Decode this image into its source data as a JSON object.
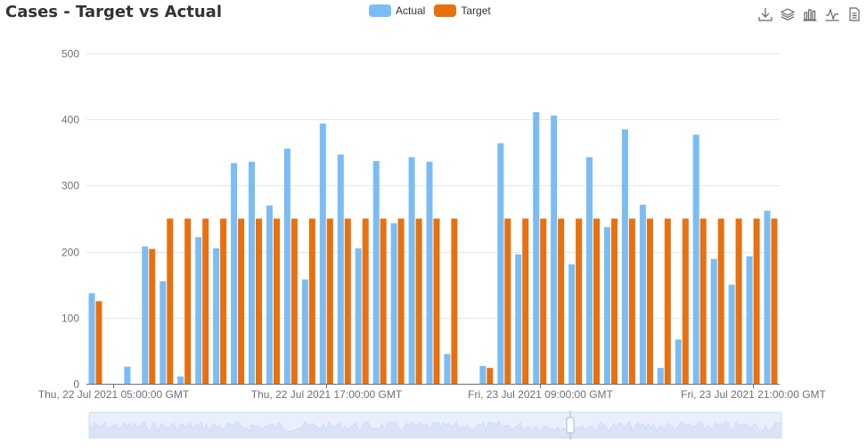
{
  "title": "Cases - Target vs Actual",
  "legend": [
    {
      "name": "Actual",
      "color": "#7bbcf5"
    },
    {
      "name": "Target",
      "color": "#e8700f"
    }
  ],
  "toolbox": [
    {
      "name": "download-icon"
    },
    {
      "name": "stack-icon"
    },
    {
      "name": "bar-chart-icon"
    },
    {
      "name": "line-chart-icon"
    },
    {
      "name": "data-view-icon"
    }
  ],
  "chart_data": {
    "type": "bar",
    "x_tick_labels": [
      "Thu, 22 Jul 2021 05:00:00 GMT",
      "Thu, 22 Jul 2021 17:00:00 GMT",
      "Fri, 23 Jul 2021 09:00:00 GMT",
      "Fri, 23 Jul 2021 21:00:00 GMT"
    ],
    "x_tick_index": [
      1,
      13,
      25,
      37
    ],
    "y_ticks": [
      0,
      100,
      200,
      300,
      400,
      500
    ],
    "ylim": [
      0,
      500
    ],
    "grid": true,
    "legend_position": "top-center",
    "series": [
      {
        "name": "Actual",
        "color": "#7bbcf5",
        "values": [
          137,
          null,
          26,
          208,
          155,
          11,
          222,
          205,
          334,
          336,
          270,
          356,
          158,
          394,
          347,
          205,
          337,
          243,
          343,
          336,
          45,
          null,
          27,
          364,
          196,
          411,
          406,
          181,
          343,
          237,
          385,
          271,
          24,
          67,
          377,
          189,
          150,
          193,
          262
        ]
      },
      {
        "name": "Target",
        "color": "#e8700f",
        "values": [
          125,
          null,
          null,
          204,
          250,
          250,
          250,
          250,
          250,
          250,
          250,
          250,
          250,
          250,
          250,
          250,
          250,
          250,
          250,
          250,
          250,
          null,
          24,
          250,
          250,
          250,
          250,
          250,
          250,
          250,
          250,
          250,
          250,
          250,
          250,
          250,
          250,
          250,
          250
        ]
      }
    ]
  }
}
